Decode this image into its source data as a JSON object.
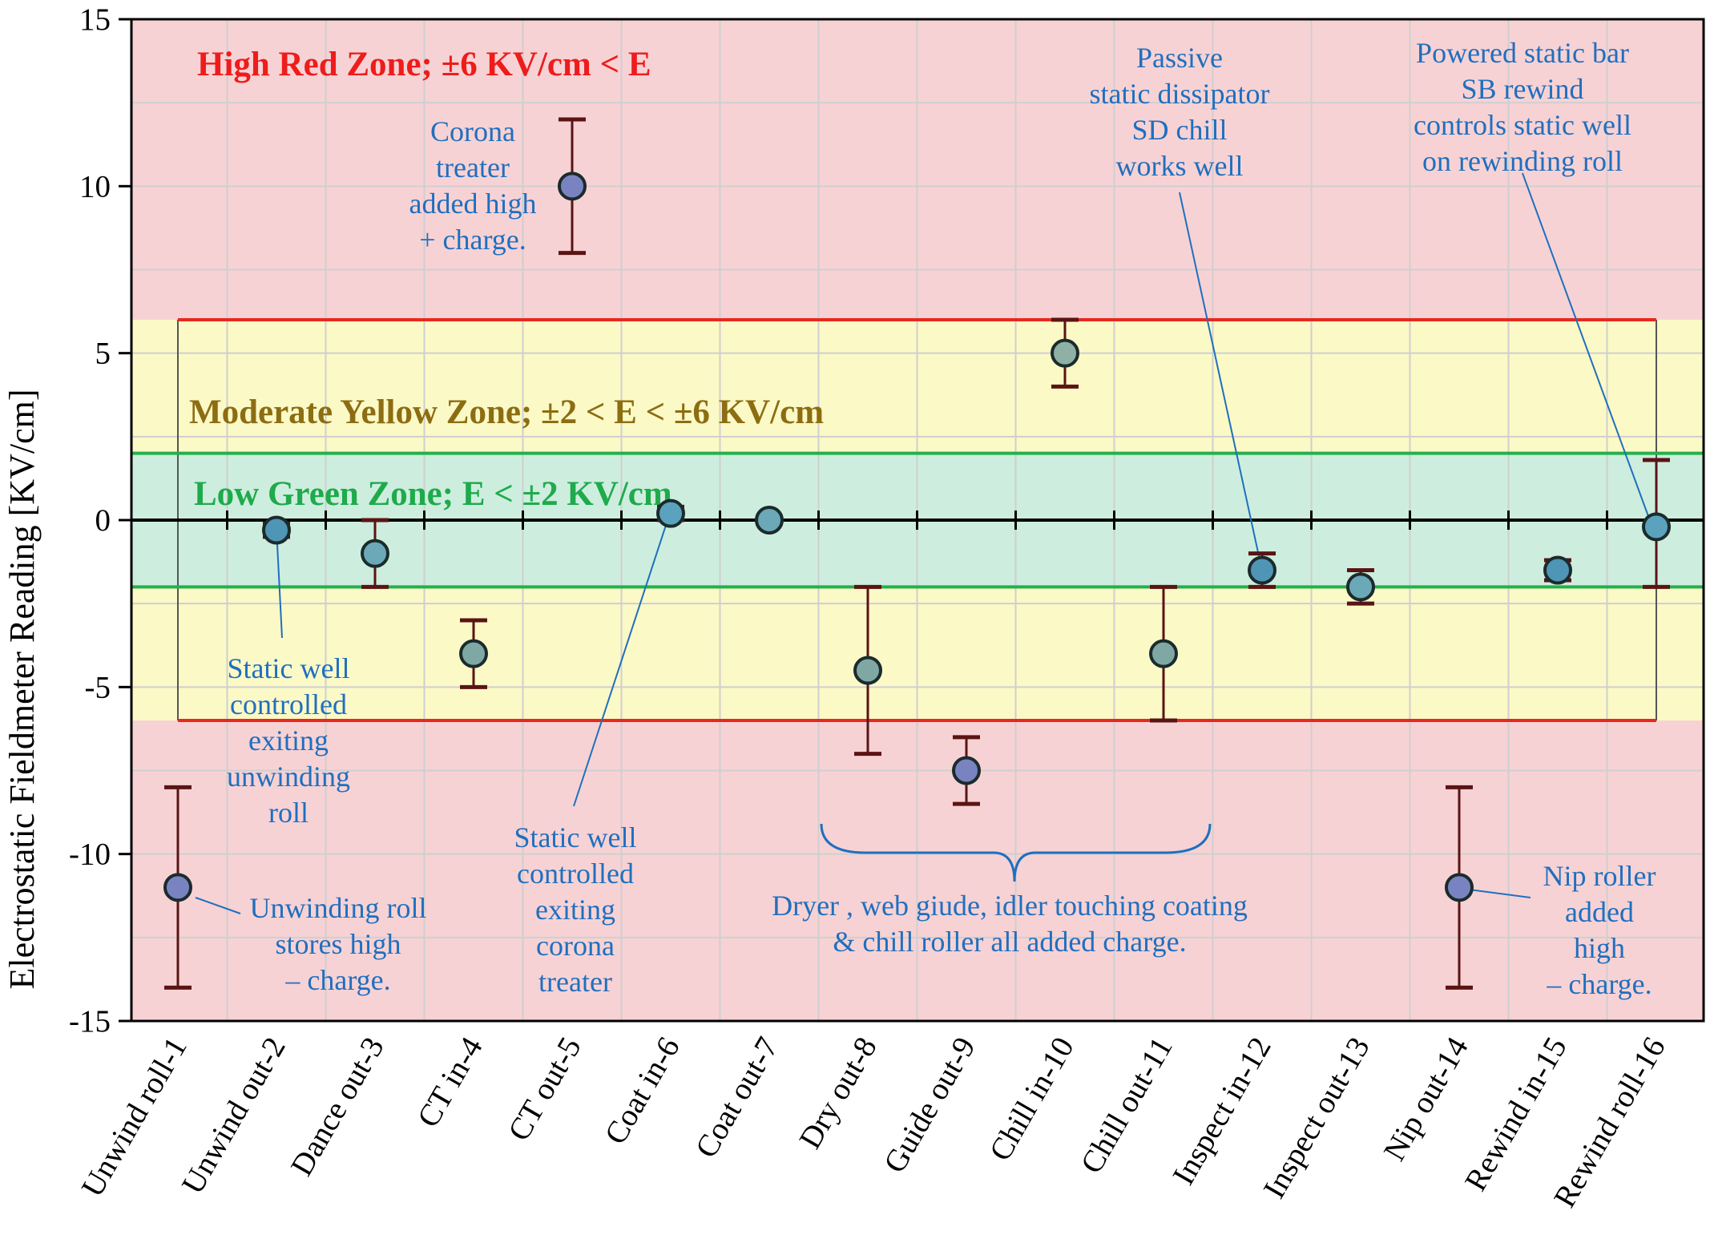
{
  "chart_data": {
    "type": "scatter",
    "ylabel": "Electrostatic Fieldmeter Reading [KV/cm]",
    "xlabel": "",
    "title": "",
    "ylim": [
      -15,
      15
    ],
    "yticks": [
      15,
      10,
      5,
      0,
      -5,
      -10,
      -15
    ],
    "grid": true,
    "categories": [
      "Unwind roll-1",
      "Unwind out-2",
      "Dance out-3",
      "CT in-4",
      "CT out-5",
      "Coat in-6",
      "Coat out-7",
      "Dry out-8",
      "Guide out-9",
      "Chill in-10",
      "Chill out-11",
      "Inspect in-12",
      "Inspect out-13",
      "Nip out-14",
      "Rewind in-15",
      "Rewind roll-16"
    ],
    "series": [
      {
        "values": [
          -11,
          -0.3,
          -1,
          -4,
          10,
          0.2,
          0,
          -4.5,
          -7.5,
          5,
          -4,
          -1.5,
          -2,
          -11,
          -1.5,
          -0.2
        ],
        "err_high": [
          -8,
          -0.1,
          0,
          -3,
          12,
          0.4,
          0.1,
          -2,
          -6.5,
          6,
          -2,
          -1,
          -1.5,
          -8,
          -1.2,
          1.8
        ],
        "err_low": [
          -14,
          -0.5,
          -2,
          -5,
          8,
          0,
          -0.1,
          -7,
          -8.5,
          4,
          -6,
          -2,
          -2.5,
          -14,
          -1.8,
          -2
        ],
        "marker_colors": [
          "#7a83c2",
          "#4f95b5",
          "#6ba8b8",
          "#7fa8a5",
          "#7a83c2",
          "#5aa2bd",
          "#6ba8b8",
          "#7fa8a5",
          "#7a83c2",
          "#8fb0a4",
          "#7fa8a5",
          "#4f95b5",
          "#6ba8b8",
          "#7a83c2",
          "#4f95b5",
          "#5aa2bd"
        ]
      }
    ],
    "zones": [
      {
        "label": "High Red Zone; ±6 KV/cm < E",
        "color": "#f7d2d4",
        "text_color": "#ee1c1c"
      },
      {
        "label": "Moderate Yellow Zone; ±2 < E < ±6 KV/cm",
        "color": "#fbf9c6",
        "text_color": "#8c6d12",
        "band": [
          -6,
          6
        ],
        "line_color": "#e8281c"
      },
      {
        "label": "Low Green Zone; E < ±2 KV/cm",
        "color": "#cdeede",
        "text_color": "#1faa4c",
        "band": [
          -2,
          2
        ],
        "line_color": "#22b14c"
      }
    ],
    "annotations": [
      {
        "lines": [
          "Corona",
          "treater",
          "added high",
          "+ charge."
        ]
      },
      {
        "lines": [
          "Passive",
          "static dissipator",
          "SD chill",
          "works well"
        ]
      },
      {
        "lines": [
          "Powered static bar",
          "SB rewind",
          "controls static well",
          "on rewinding roll"
        ]
      },
      {
        "lines": [
          "Static well",
          "controlled",
          "exiting",
          "unwinding",
          "roll"
        ]
      },
      {
        "lines": [
          "Static well",
          "controlled",
          "exiting",
          "corona",
          "treater"
        ]
      },
      {
        "lines": [
          "Unwinding roll",
          "stores high",
          "– charge."
        ]
      },
      {
        "lines": [
          "Dryer , web giude, idler touching coating",
          "& chill roller all added charge."
        ]
      },
      {
        "lines": [
          "Nip roller",
          "added",
          "high",
          "– charge."
        ]
      }
    ],
    "colors": {
      "annotation": "#1f6fbf",
      "error_bar": "#5a1414",
      "grid": "#cfcfcf"
    }
  }
}
